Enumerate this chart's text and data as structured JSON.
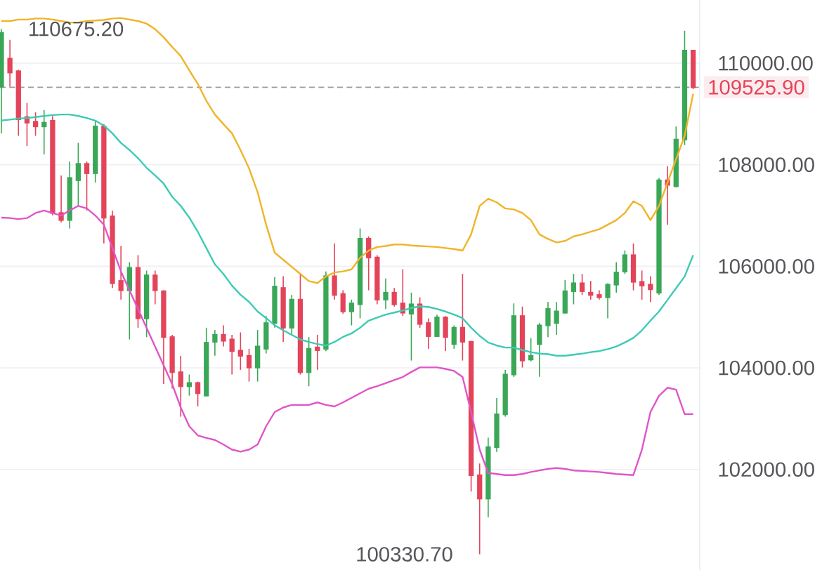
{
  "chart_data": {
    "type": "candlestick",
    "categories": [
      null,
      null,
      null,
      null,
      null,
      null,
      null,
      null,
      null,
      null,
      null,
      null,
      null,
      null,
      null,
      null,
      null,
      null,
      null,
      null,
      null,
      null,
      null,
      null,
      null,
      null,
      null,
      null,
      null,
      null,
      null,
      null,
      null,
      null,
      null,
      null,
      null,
      null,
      null,
      null,
      null,
      null,
      null,
      null,
      null,
      null,
      null,
      null,
      null,
      null,
      null,
      null,
      null,
      null,
      null,
      null,
      null,
      null,
      null,
      null,
      null,
      null,
      null,
      null,
      null,
      null,
      null,
      null,
      null,
      null,
      null,
      null,
      null,
      null,
      null,
      null,
      null,
      null,
      null,
      null,
      null,
      null
    ],
    "ohlc": [
      [
        109539,
        110675.2,
        108617,
        110600
      ],
      [
        110092,
        110461,
        109539,
        109816
      ],
      [
        109843,
        109870,
        108571,
        108894
      ],
      [
        108940,
        109216,
        108368,
        108829
      ],
      [
        108848,
        109032,
        108571,
        108755
      ],
      [
        108755,
        109078,
        108202,
        108829
      ],
      [
        108866,
        108958,
        107004,
        107050
      ],
      [
        107050,
        107787,
        106865,
        106911
      ],
      [
        106911,
        108064,
        106745,
        107741
      ],
      [
        107695,
        108433,
        107188,
        108018
      ],
      [
        108018,
        108064,
        107096,
        107833
      ],
      [
        107833,
        108866,
        107649,
        108755
      ],
      [
        108755,
        108801,
        106450,
        106957
      ],
      [
        106985,
        107096,
        105574,
        105667
      ],
      [
        105713,
        106404,
        105344,
        105528
      ],
      [
        105528,
        106082,
        104560,
        105971
      ],
      [
        105971,
        106220,
        104791,
        104975
      ],
      [
        104975,
        105916,
        104606,
        105823
      ],
      [
        105823,
        105916,
        105252,
        105528
      ],
      [
        105510,
        105528,
        103684,
        104606
      ],
      [
        104606,
        104652,
        103592,
        103915
      ],
      [
        103915,
        104238,
        103039,
        103638
      ],
      [
        103638,
        103869,
        103454,
        103703
      ],
      [
        103703,
        103730,
        103242,
        103500
      ],
      [
        103454,
        104791,
        103440,
        104496
      ],
      [
        104514,
        104745,
        104238,
        104652
      ],
      [
        104652,
        104837,
        104422,
        104533
      ],
      [
        104560,
        104652,
        103869,
        104330
      ],
      [
        104340,
        104699,
        103961,
        104238
      ],
      [
        104238,
        104376,
        103730,
        104007
      ],
      [
        104007,
        104745,
        103730,
        104422
      ],
      [
        104376,
        105021,
        104284,
        104883
      ],
      [
        104883,
        105787,
        104791,
        105602
      ],
      [
        105574,
        105805,
        104514,
        104791
      ],
      [
        104791,
        105436,
        104652,
        105344
      ],
      [
        105344,
        105851,
        103869,
        103915
      ],
      [
        103915,
        104606,
        103638,
        104376
      ],
      [
        104404,
        104652,
        103961,
        104348
      ],
      [
        104376,
        105897,
        104330,
        105805
      ],
      [
        105805,
        106450,
        105344,
        105436
      ],
      [
        105455,
        105528,
        105067,
        105113
      ],
      [
        105113,
        105344,
        104837,
        105270
      ],
      [
        105252,
        106745,
        104975,
        106543
      ],
      [
        106543,
        106589,
        105528,
        106174
      ],
      [
        106174,
        106220,
        105252,
        105344
      ],
      [
        105344,
        105759,
        105160,
        105482
      ],
      [
        105482,
        105574,
        105206,
        105252
      ],
      [
        105270,
        105943,
        105021,
        105086
      ],
      [
        105067,
        105482,
        104145,
        105252
      ],
      [
        105252,
        105390,
        104791,
        104865
      ],
      [
        104883,
        104975,
        104376,
        104625
      ],
      [
        104625,
        105049,
        104606,
        104994
      ],
      [
        104994,
        105021,
        104330,
        104606
      ],
      [
        104468,
        104837,
        104376,
        104791
      ],
      [
        104791,
        105851,
        104145,
        104514
      ],
      [
        104514,
        104530,
        101564,
        101886
      ],
      [
        101886,
        102117,
        100330.7,
        101425
      ],
      [
        101425,
        102624,
        101057,
        102440
      ],
      [
        102440,
        103408,
        102347,
        103085
      ],
      [
        103085,
        103961,
        103039,
        103869
      ],
      [
        103869,
        105270,
        103823,
        105021
      ],
      [
        105021,
        105206,
        104007,
        104145
      ],
      [
        104164,
        104588,
        104127,
        104238
      ],
      [
        104468,
        104883,
        103823,
        104837
      ],
      [
        104837,
        105298,
        104606,
        105160
      ],
      [
        104883,
        105298,
        104652,
        105113
      ],
      [
        105086,
        105731,
        105067,
        105510
      ],
      [
        105510,
        105851,
        105252,
        105667
      ],
      [
        105667,
        105851,
        105436,
        105510
      ],
      [
        105482,
        105713,
        105344,
        105436
      ],
      [
        105436,
        105528,
        105344,
        105390
      ],
      [
        105390,
        105667,
        104975,
        105639
      ],
      [
        105639,
        106082,
        105482,
        105879
      ],
      [
        105897,
        106312,
        105851,
        106220
      ],
      [
        106220,
        106450,
        105528,
        105694
      ],
      [
        105694,
        105916,
        105344,
        105621
      ],
      [
        105639,
        105805,
        105298,
        105547
      ],
      [
        105482,
        107741,
        105436,
        107695
      ],
      [
        107695,
        107972,
        106819,
        107603
      ],
      [
        107575,
        108755,
        107557,
        108497
      ],
      [
        108497,
        110640,
        108387,
        110249
      ],
      [
        110249,
        110260,
        109490,
        109525.9
      ]
    ],
    "colors": [
      "#3aa757",
      "#e3445a",
      "#e3445a",
      "#e3445a",
      "#e3445a",
      "#3aa757",
      "#e3445a",
      "#e3445a",
      "#3aa757",
      "#3aa757",
      "#e3445a",
      "#3aa757",
      "#e3445a",
      "#e3445a",
      "#e3445a",
      "#3aa757",
      "#e3445a",
      "#3aa757",
      "#e3445a",
      "#e3445a",
      "#e3445a",
      "#e3445a",
      "#3aa757",
      "#e3445a",
      "#3aa757",
      "#3aa757",
      "#e3445a",
      "#e3445a",
      "#e3445a",
      "#e3445a",
      "#3aa757",
      "#3aa757",
      "#3aa757",
      "#e3445a",
      "#3aa757",
      "#e3445a",
      "#3aa757",
      "#e3445a",
      "#3aa757",
      "#e3445a",
      "#e3445a",
      "#3aa757",
      "#3aa757",
      "#e3445a",
      "#e3445a",
      "#3aa757",
      "#e3445a",
      "#e3445a",
      "#3aa757",
      "#e3445a",
      "#e3445a",
      "#3aa757",
      "#e3445a",
      "#3aa757",
      "#e3445a",
      "#e3445a",
      "#e3445a",
      "#3aa757",
      "#3aa757",
      "#3aa757",
      "#3aa757",
      "#e3445a",
      "#3aa757",
      "#3aa757",
      "#3aa757",
      "#3aa757",
      "#3aa757",
      "#3aa757",
      "#e3445a",
      "#e3445a",
      "#e3445a",
      "#3aa757",
      "#3aa757",
      "#3aa757",
      "#e3445a",
      "#e3445a",
      "#e3445a",
      "#3aa757",
      "#e3445a",
      "#3aa757",
      "#3aa757",
      "#e3445a"
    ],
    "series": [
      {
        "type": "line",
        "color": "#f0b429",
        "values": [
          110830,
          110830,
          110860,
          110860,
          110880,
          110880,
          110860,
          110830,
          110800,
          110800,
          110830,
          110840,
          110850,
          110880,
          110890,
          110860,
          110830,
          110780,
          110670,
          110510,
          110320,
          110140,
          109860,
          109590,
          109260,
          108990,
          108800,
          108620,
          108290,
          107930,
          107460,
          106820,
          106270,
          106130,
          105990,
          105850,
          105710,
          105670,
          105800,
          105880,
          105900,
          105940,
          106170,
          106310,
          106380,
          106400,
          106430,
          106430,
          106410,
          106400,
          106390,
          106380,
          106360,
          106340,
          106310,
          106630,
          107190,
          107330,
          107260,
          107140,
          107120,
          107050,
          106910,
          106630,
          106540,
          106470,
          106500,
          106590,
          106630,
          106680,
          106730,
          106820,
          106910,
          107050,
          107280,
          107190,
          106910,
          107190,
          107650,
          108110,
          108570,
          109400
        ]
      },
      {
        "type": "line",
        "color": "#3ccbb4",
        "values": [
          108870,
          108890,
          108910,
          108920,
          108940,
          108960,
          108980,
          108990,
          108990,
          108960,
          108920,
          108870,
          108770,
          108620,
          108430,
          108290,
          108130,
          107940,
          107790,
          107630,
          107370,
          107190,
          106960,
          106680,
          106360,
          106040,
          105850,
          105620,
          105440,
          105300,
          105110,
          104980,
          104840,
          104740,
          104650,
          104560,
          104510,
          104470,
          104440,
          104510,
          104610,
          104680,
          104790,
          104930,
          104990,
          105050,
          105090,
          105130,
          105180,
          105210,
          105200,
          105160,
          105110,
          105050,
          104980,
          104790,
          104630,
          104500,
          104440,
          104400,
          104400,
          104350,
          104310,
          104280,
          104270,
          104240,
          104240,
          104260,
          104280,
          104310,
          104330,
          104370,
          104420,
          104500,
          104590,
          104740,
          104930,
          105110,
          105340,
          105570,
          105800,
          106220
        ]
      },
      {
        "type": "line",
        "color": "#e055c8",
        "values": [
          106960,
          106950,
          106930,
          106950,
          107050,
          107100,
          107050,
          107000,
          107100,
          107190,
          107140,
          107000,
          106820,
          106360,
          105900,
          105530,
          105160,
          104790,
          104420,
          104050,
          103680,
          103220,
          102850,
          102670,
          102620,
          102580,
          102490,
          102390,
          102350,
          102390,
          102490,
          102850,
          103130,
          103220,
          103270,
          103270,
          103270,
          103320,
          103270,
          103240,
          103320,
          103410,
          103500,
          103590,
          103640,
          103700,
          103760,
          103820,
          103920,
          104010,
          104010,
          104010,
          103980,
          103940,
          103820,
          103130,
          102390,
          101930,
          101910,
          101890,
          101890,
          101910,
          101950,
          101980,
          102010,
          102030,
          102010,
          101980,
          101970,
          101960,
          101950,
          101930,
          101910,
          101900,
          101890,
          102390,
          103130,
          103450,
          103610,
          103570,
          103090,
          103090
        ]
      }
    ],
    "ylim": [
      100020,
      111245
    ],
    "yticks": [
      {
        "value": 102000,
        "label": "102000.00"
      },
      {
        "value": 104000,
        "label": "104000.00"
      },
      {
        "value": 106000,
        "label": "106000.00"
      },
      {
        "value": 108000,
        "label": "108000.00"
      },
      {
        "value": 110000,
        "label": "110000.00"
      }
    ],
    "grid": "y",
    "tick_labels": "y",
    "ref_lines": [
      {
        "axis": "y",
        "value": 109525.9,
        "label": "109525.90",
        "color": "#9e9e9e",
        "line_style": "dashed"
      }
    ],
    "annotations": [
      "110675.20",
      "100330.70"
    ]
  }
}
